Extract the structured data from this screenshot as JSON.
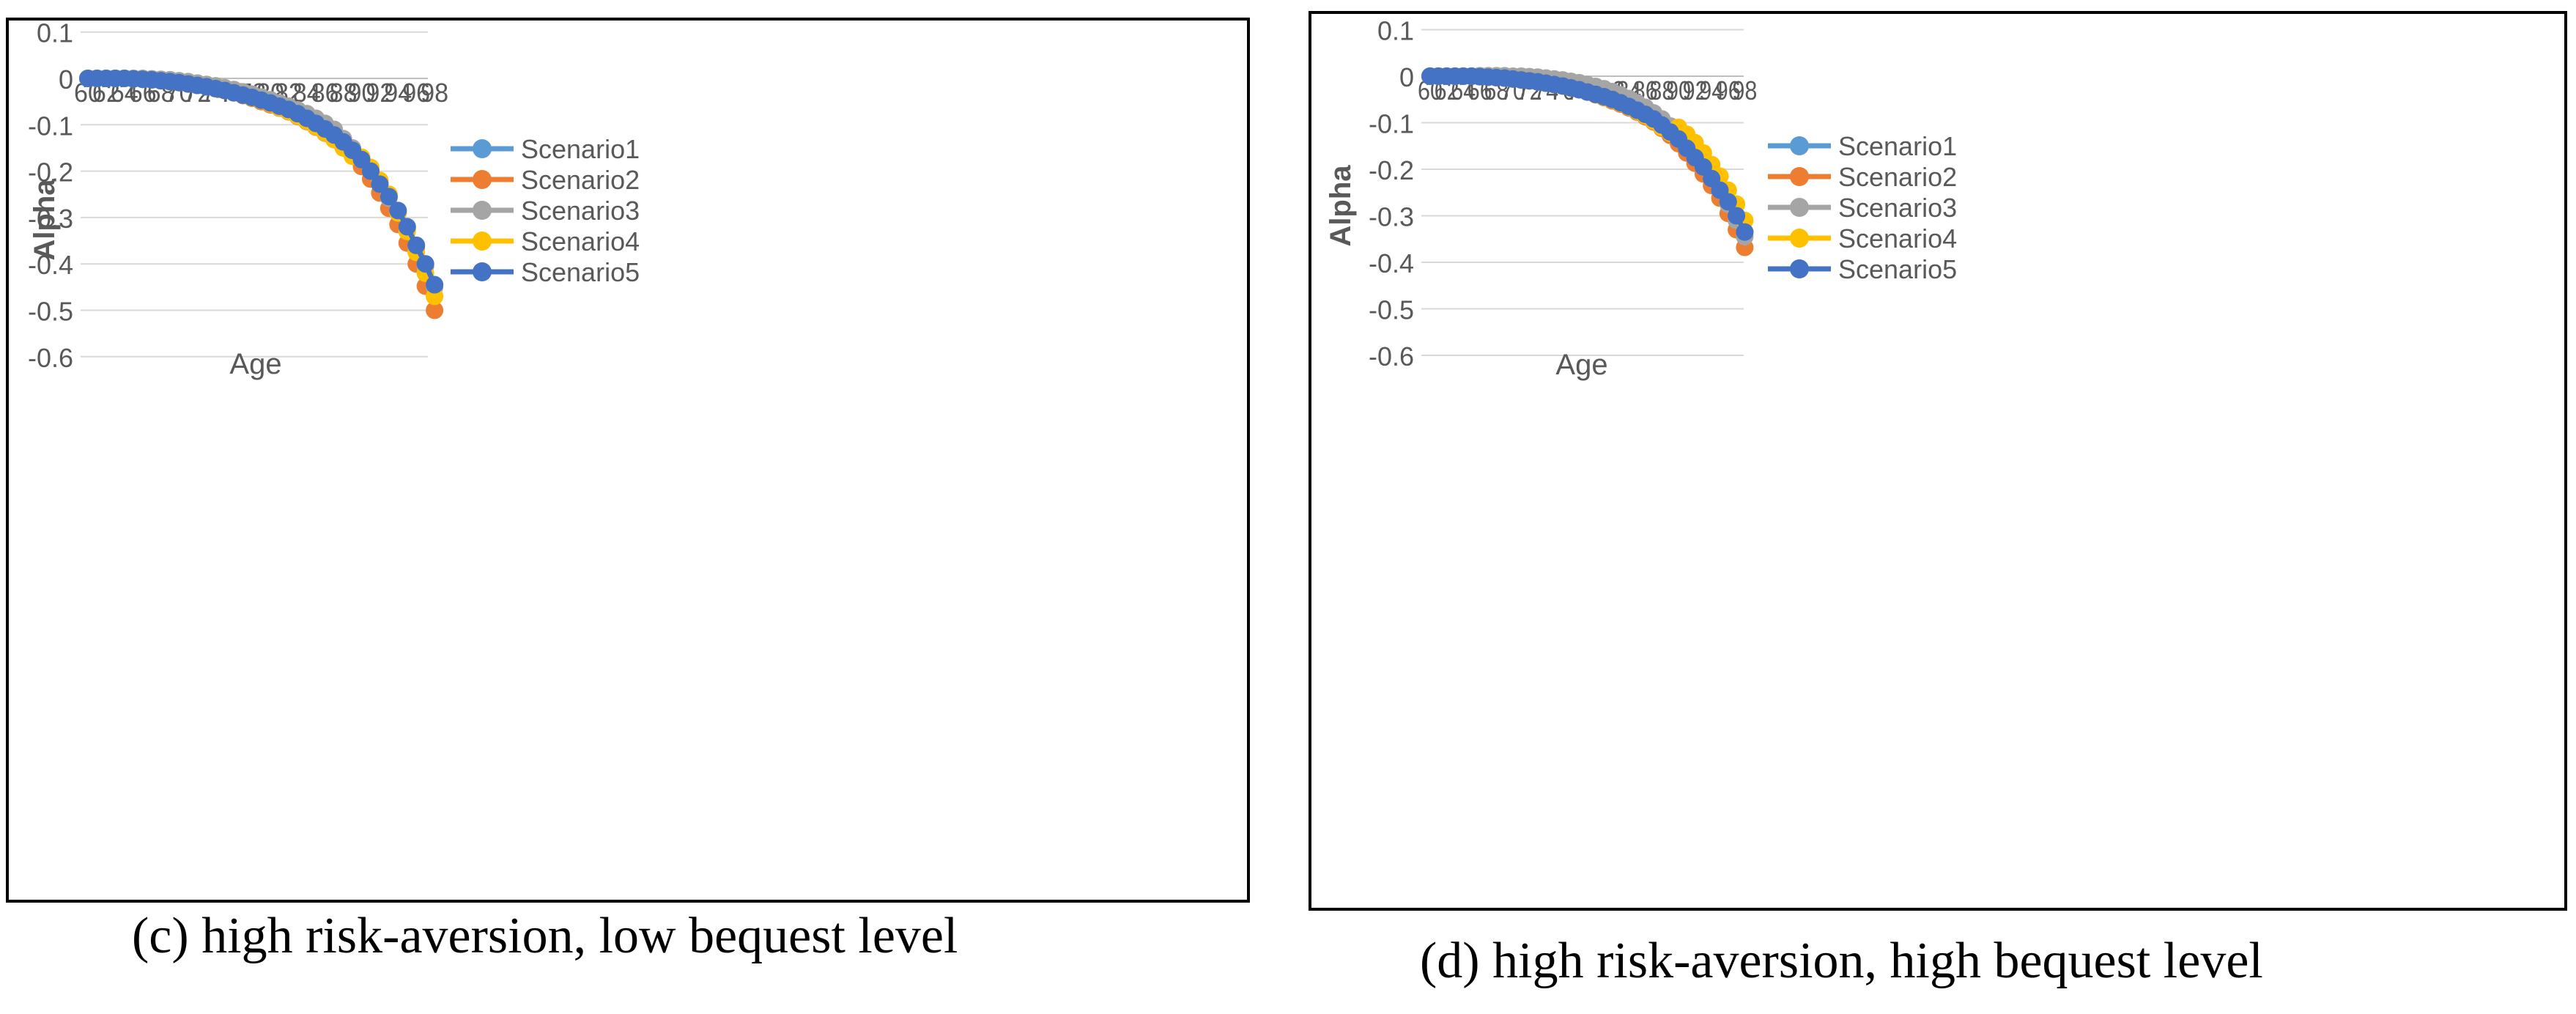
{
  "chart_data": [
    {
      "type": "line",
      "panel_id": "c",
      "title": "",
      "xlabel": "Age",
      "ylabel": "Alpha",
      "ylim": [
        -0.6,
        0.1
      ],
      "yticks": [
        "0.1",
        "0",
        "-0.1",
        "-0.2",
        "-0.3",
        "-0.4",
        "-0.5",
        "-0.6"
      ],
      "ytick_values": [
        0.1,
        0,
        -0.1,
        -0.2,
        -0.3,
        -0.4,
        -0.5,
        -0.6
      ],
      "x": [
        60,
        61,
        62,
        63,
        64,
        65,
        66,
        67,
        68,
        69,
        70,
        71,
        72,
        73,
        74,
        75,
        76,
        77,
        78,
        79,
        80,
        81,
        82,
        83,
        84,
        85,
        86,
        87,
        88,
        89,
        90,
        91,
        92,
        93,
        94,
        95,
        96,
        97,
        98
      ],
      "xtick_labels": [
        "60",
        "62",
        "64",
        "66",
        "68",
        "70",
        "72",
        "74",
        "76",
        "78",
        "80",
        "82",
        "84",
        "86",
        "88",
        "90",
        "92",
        "94",
        "96",
        "98"
      ],
      "legend_position": "right",
      "caption": "(c) high risk-aversion, low bequest level",
      "series": [
        {
          "name": "Scenario1",
          "color": "#5B9BD5",
          "values": [
            0,
            0,
            0,
            0,
            0,
            -0.001,
            -0.002,
            -0.003,
            -0.005,
            -0.007,
            -0.009,
            -0.012,
            -0.015,
            -0.018,
            -0.022,
            -0.026,
            -0.031,
            -0.036,
            -0.041,
            -0.047,
            -0.053,
            -0.06,
            -0.067,
            -0.076,
            -0.086,
            -0.097,
            -0.109,
            -0.122,
            -0.137,
            -0.155,
            -0.175,
            -0.2,
            -0.228,
            -0.255,
            -0.285,
            -0.32,
            -0.36,
            -0.4,
            -0.445
          ]
        },
        {
          "name": "Scenario2",
          "color": "#ED7D31",
          "values": [
            0,
            0,
            0,
            0,
            0,
            -0.001,
            -0.002,
            -0.003,
            -0.005,
            -0.007,
            -0.009,
            -0.012,
            -0.015,
            -0.018,
            -0.022,
            -0.026,
            -0.031,
            -0.037,
            -0.043,
            -0.05,
            -0.057,
            -0.064,
            -0.072,
            -0.082,
            -0.093,
            -0.105,
            -0.118,
            -0.132,
            -0.148,
            -0.167,
            -0.19,
            -0.217,
            -0.247,
            -0.28,
            -0.315,
            -0.355,
            -0.4,
            -0.448,
            -0.5
          ]
        },
        {
          "name": "Scenario3",
          "color": "#A5A5A5",
          "values": [
            0,
            0,
            0,
            0,
            0,
            0,
            0,
            -0.001,
            -0.002,
            -0.003,
            -0.005,
            -0.007,
            -0.01,
            -0.013,
            -0.016,
            -0.02,
            -0.024,
            -0.029,
            -0.034,
            -0.04,
            -0.046,
            -0.053,
            -0.06,
            -0.068,
            -0.076,
            -0.086,
            -0.097,
            -0.11,
            -0.13,
            -0.15,
            -0.172,
            -0.198,
            -0.226,
            -0.258,
            -0.29,
            -0.325,
            -0.365,
            -0.405,
            -0.45
          ]
        },
        {
          "name": "Scenario4",
          "color": "#FFC000",
          "values": [
            0,
            0,
            0,
            0,
            0,
            -0.001,
            -0.002,
            -0.003,
            -0.005,
            -0.007,
            -0.009,
            -0.012,
            -0.015,
            -0.018,
            -0.022,
            -0.026,
            -0.031,
            -0.036,
            -0.042,
            -0.048,
            -0.055,
            -0.063,
            -0.071,
            -0.081,
            -0.092,
            -0.104,
            -0.117,
            -0.132,
            -0.15,
            -0.168,
            -0.17,
            -0.192,
            -0.22,
            -0.25,
            -0.29,
            -0.33,
            -0.375,
            -0.42,
            -0.47
          ]
        },
        {
          "name": "Scenario5",
          "color": "#4472C4",
          "values": [
            0,
            0,
            0,
            0,
            0,
            -0.001,
            -0.002,
            -0.003,
            -0.005,
            -0.007,
            -0.009,
            -0.012,
            -0.015,
            -0.018,
            -0.022,
            -0.026,
            -0.031,
            -0.036,
            -0.041,
            -0.047,
            -0.053,
            -0.06,
            -0.067,
            -0.076,
            -0.086,
            -0.097,
            -0.109,
            -0.122,
            -0.137,
            -0.155,
            -0.175,
            -0.2,
            -0.228,
            -0.255,
            -0.285,
            -0.32,
            -0.36,
            -0.4,
            -0.445
          ]
        }
      ]
    },
    {
      "type": "line",
      "panel_id": "d",
      "title": "",
      "xlabel": "Age",
      "ylabel": "Alpha",
      "ylim": [
        -0.6,
        0.1
      ],
      "yticks": [
        "0.1",
        "0",
        "-0.1",
        "-0.2",
        "-0.3",
        "-0.4",
        "-0.5",
        "-0.6"
      ],
      "ytick_values": [
        0.1,
        0,
        -0.1,
        -0.2,
        -0.3,
        -0.4,
        -0.5,
        -0.6
      ],
      "x": [
        60,
        61,
        62,
        63,
        64,
        65,
        66,
        67,
        68,
        69,
        70,
        71,
        72,
        73,
        74,
        75,
        76,
        77,
        78,
        79,
        80,
        81,
        82,
        83,
        84,
        85,
        86,
        87,
        88,
        89,
        90,
        91,
        92,
        93,
        94,
        95,
        96,
        97,
        98
      ],
      "xtick_labels": [
        "60",
        "62",
        "64",
        "66",
        "68",
        "70",
        "72",
        "74",
        "76",
        "78",
        "80",
        "82",
        "84",
        "86",
        "88",
        "90",
        "92",
        "94",
        "96",
        "98"
      ],
      "legend_position": "right",
      "caption": "(d) high risk-aversion, high bequest level",
      "series": [
        {
          "name": "Scenario1",
          "color": "#5B9BD5",
          "values": [
            0,
            0,
            0,
            0,
            0,
            0,
            -0.001,
            -0.002,
            -0.003,
            -0.004,
            -0.006,
            -0.008,
            -0.01,
            -0.012,
            -0.015,
            -0.018,
            -0.021,
            -0.025,
            -0.029,
            -0.034,
            -0.039,
            -0.044,
            -0.05,
            -0.057,
            -0.065,
            -0.073,
            -0.082,
            -0.092,
            -0.105,
            -0.12,
            -0.135,
            -0.155,
            -0.175,
            -0.195,
            -0.22,
            -0.245,
            -0.27,
            -0.3,
            -0.335
          ]
        },
        {
          "name": "Scenario2",
          "color": "#ED7D31",
          "values": [
            0,
            0,
            0,
            0,
            0,
            0,
            -0.001,
            -0.002,
            -0.003,
            -0.004,
            -0.006,
            -0.008,
            -0.01,
            -0.012,
            -0.015,
            -0.018,
            -0.021,
            -0.025,
            -0.029,
            -0.034,
            -0.04,
            -0.046,
            -0.053,
            -0.06,
            -0.068,
            -0.077,
            -0.087,
            -0.098,
            -0.112,
            -0.127,
            -0.145,
            -0.165,
            -0.187,
            -0.21,
            -0.235,
            -0.262,
            -0.295,
            -0.33,
            -0.368
          ]
        },
        {
          "name": "Scenario3",
          "color": "#A5A5A5",
          "values": [
            0,
            0,
            0,
            0,
            0,
            0,
            0.001,
            0.001,
            0.001,
            0.001,
            0,
            0,
            -0.001,
            -0.002,
            -0.004,
            -0.006,
            -0.008,
            -0.011,
            -0.014,
            -0.018,
            -0.022,
            -0.027,
            -0.033,
            -0.04,
            -0.048,
            -0.057,
            -0.067,
            -0.079,
            -0.092,
            -0.107,
            -0.125,
            -0.145,
            -0.165,
            -0.19,
            -0.215,
            -0.245,
            -0.275,
            -0.31,
            -0.345
          ]
        },
        {
          "name": "Scenario4",
          "color": "#FFC000",
          "values": [
            0,
            0,
            0,
            0,
            0,
            0,
            -0.001,
            -0.002,
            -0.003,
            -0.004,
            -0.006,
            -0.008,
            -0.01,
            -0.012,
            -0.015,
            -0.018,
            -0.021,
            -0.025,
            -0.029,
            -0.034,
            -0.039,
            -0.045,
            -0.051,
            -0.058,
            -0.066,
            -0.075,
            -0.085,
            -0.096,
            -0.11,
            -0.122,
            -0.11,
            -0.125,
            -0.143,
            -0.165,
            -0.19,
            -0.215,
            -0.245,
            -0.275,
            -0.31
          ]
        },
        {
          "name": "Scenario5",
          "color": "#4472C4",
          "values": [
            0,
            0,
            0,
            0,
            0,
            0,
            -0.001,
            -0.002,
            -0.003,
            -0.004,
            -0.006,
            -0.008,
            -0.01,
            -0.012,
            -0.015,
            -0.018,
            -0.021,
            -0.025,
            -0.029,
            -0.034,
            -0.039,
            -0.044,
            -0.05,
            -0.057,
            -0.065,
            -0.073,
            -0.082,
            -0.092,
            -0.105,
            -0.12,
            -0.135,
            -0.155,
            -0.175,
            -0.195,
            -0.22,
            -0.245,
            -0.27,
            -0.3,
            -0.335
          ]
        }
      ]
    }
  ]
}
